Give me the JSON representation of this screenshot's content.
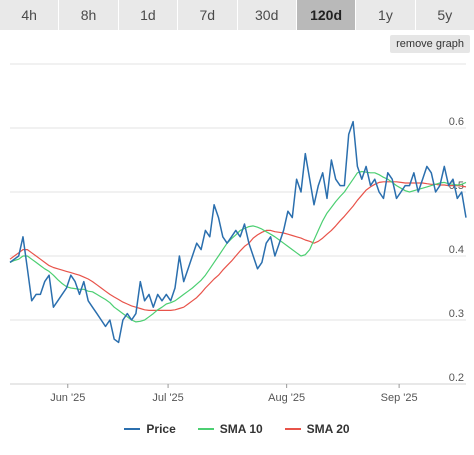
{
  "tabs": [
    {
      "label": "4h",
      "active": false
    },
    {
      "label": "8h",
      "active": false
    },
    {
      "label": "1d",
      "active": false
    },
    {
      "label": "7d",
      "active": false
    },
    {
      "label": "30d",
      "active": false
    },
    {
      "label": "120d",
      "active": true
    },
    {
      "label": "1y",
      "active": false
    },
    {
      "label": "5y",
      "active": false
    }
  ],
  "remove_graph_label": "remove graph",
  "chart_data": {
    "type": "line",
    "x_tick_labels": [
      "Jun '25",
      "Jul '25",
      "Aug '25",
      "Sep '25"
    ],
    "y_tick_labels": [
      "0.2",
      "0.3",
      "0.4",
      "0.5",
      "0.6"
    ],
    "ylim": [
      0.2,
      0.7
    ],
    "grid": true,
    "legend_position": "bottom",
    "series": [
      {
        "name": "Price",
        "color": "#2b6fae",
        "values": [
          0.39,
          0.395,
          0.4,
          0.43,
          0.38,
          0.33,
          0.34,
          0.34,
          0.36,
          0.37,
          0.32,
          0.33,
          0.34,
          0.35,
          0.37,
          0.36,
          0.34,
          0.36,
          0.33,
          0.32,
          0.31,
          0.3,
          0.29,
          0.3,
          0.27,
          0.265,
          0.3,
          0.31,
          0.3,
          0.31,
          0.36,
          0.33,
          0.34,
          0.32,
          0.34,
          0.33,
          0.34,
          0.33,
          0.35,
          0.4,
          0.36,
          0.38,
          0.4,
          0.42,
          0.41,
          0.44,
          0.43,
          0.48,
          0.46,
          0.43,
          0.42,
          0.43,
          0.44,
          0.43,
          0.45,
          0.42,
          0.4,
          0.38,
          0.39,
          0.42,
          0.43,
          0.4,
          0.42,
          0.44,
          0.47,
          0.46,
          0.52,
          0.5,
          0.56,
          0.52,
          0.48,
          0.51,
          0.53,
          0.49,
          0.55,
          0.52,
          0.51,
          0.51,
          0.59,
          0.61,
          0.54,
          0.52,
          0.54,
          0.51,
          0.52,
          0.5,
          0.49,
          0.53,
          0.52,
          0.49,
          0.5,
          0.51,
          0.51,
          0.53,
          0.5,
          0.52,
          0.54,
          0.53,
          0.5,
          0.51,
          0.54,
          0.51,
          0.52,
          0.49,
          0.5,
          0.46
        ]
      },
      {
        "name": "SMA 10",
        "color": "#4ccf72",
        "values": [
          0.39,
          0.393,
          0.395,
          0.4,
          0.4,
          0.395,
          0.39,
          0.385,
          0.38,
          0.376,
          0.37,
          0.363,
          0.357,
          0.352,
          0.35,
          0.349,
          0.348,
          0.348,
          0.345,
          0.344,
          0.34,
          0.336,
          0.332,
          0.327,
          0.32,
          0.315,
          0.31,
          0.305,
          0.3,
          0.297,
          0.298,
          0.3,
          0.305,
          0.31,
          0.316,
          0.32,
          0.325,
          0.327,
          0.33,
          0.335,
          0.34,
          0.345,
          0.35,
          0.356,
          0.362,
          0.37,
          0.38,
          0.39,
          0.4,
          0.41,
          0.42,
          0.427,
          0.433,
          0.44,
          0.443,
          0.446,
          0.447,
          0.445,
          0.442,
          0.438,
          0.434,
          0.43,
          0.425,
          0.42,
          0.415,
          0.41,
          0.405,
          0.4,
          0.402,
          0.41,
          0.425,
          0.44,
          0.455,
          0.467,
          0.476,
          0.485,
          0.493,
          0.5,
          0.51,
          0.52,
          0.53,
          0.532,
          0.531,
          0.53,
          0.53,
          0.527,
          0.523,
          0.52,
          0.515,
          0.51,
          0.506,
          0.502,
          0.5,
          0.502,
          0.504,
          0.506,
          0.508,
          0.51,
          0.512,
          0.514,
          0.515,
          0.513,
          0.512,
          0.511,
          0.512,
          0.515
        ]
      },
      {
        "name": "SMA 20",
        "color": "#e8534a",
        "values": [
          0.395,
          0.4,
          0.405,
          0.41,
          0.41,
          0.405,
          0.4,
          0.395,
          0.39,
          0.385,
          0.382,
          0.38,
          0.378,
          0.376,
          0.374,
          0.372,
          0.37,
          0.367,
          0.364,
          0.36,
          0.355,
          0.35,
          0.345,
          0.34,
          0.336,
          0.332,
          0.328,
          0.325,
          0.322,
          0.32,
          0.318,
          0.316,
          0.315,
          0.315,
          0.315,
          0.315,
          0.315,
          0.315,
          0.316,
          0.318,
          0.32,
          0.325,
          0.33,
          0.335,
          0.342,
          0.35,
          0.357,
          0.364,
          0.37,
          0.378,
          0.385,
          0.392,
          0.4,
          0.408,
          0.415,
          0.42,
          0.428,
          0.433,
          0.437,
          0.44,
          0.44,
          0.438,
          0.437,
          0.436,
          0.434,
          0.432,
          0.43,
          0.428,
          0.425,
          0.423,
          0.42,
          0.423,
          0.428,
          0.434,
          0.44,
          0.447,
          0.455,
          0.462,
          0.47,
          0.478,
          0.487,
          0.495,
          0.503,
          0.508,
          0.512,
          0.515,
          0.516,
          0.516,
          0.516,
          0.516,
          0.515,
          0.514,
          0.514,
          0.514,
          0.514,
          0.514,
          0.513,
          0.512,
          0.512,
          0.511,
          0.511,
          0.51,
          0.51,
          0.51,
          0.509,
          0.508
        ]
      }
    ]
  }
}
